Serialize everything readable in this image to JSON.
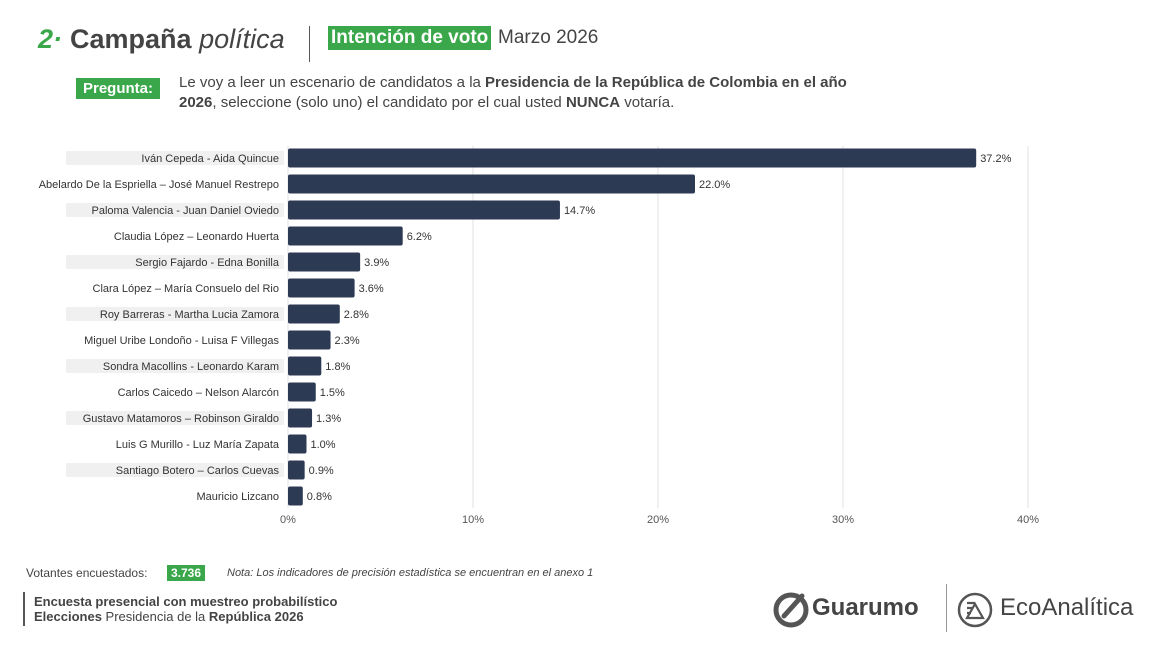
{
  "header": {
    "section_number": "2·",
    "section_title_bold": "Campaña",
    "section_title_italic": "política",
    "tag": "Intención de voto",
    "date": "Marzo  2026"
  },
  "question": {
    "tag": "Pregunta:",
    "part1": "Le voy a leer un escenario de candidatos a la ",
    "part2_bold": "Presidencia de la República de Colombia en el año 2026",
    "part3": ", seleccione (solo uno) el candidato por el cual usted ",
    "part4_bold": "NUNCA",
    "part5": " votaría."
  },
  "chart_data": {
    "type": "bar",
    "orientation": "horizontal",
    "categories": [
      "Iván Cepeda - Aida Quincue",
      "Abelardo De la Espriella – José Manuel Restrepo",
      "Paloma Valencia - Juan Daniel Oviedo",
      "Claudia López – Leonardo Huerta",
      "Sergio Fajardo - Edna Bonilla",
      "Clara López – María Consuelo del Rio",
      "Roy Barreras - Martha Lucia Zamora",
      "Miguel Uribe Londoño - Luisa F Villegas",
      "Sondra Macollins - Leonardo Karam",
      "Carlos Caicedo – Nelson Alarcón",
      "Gustavo Matamoros – Robinson Giraldo",
      "Luis G Murillo - Luz María Zapata",
      "Santiago Botero – Carlos Cuevas",
      "Mauricio Lizcano"
    ],
    "values": [
      37.2,
      22.0,
      14.7,
      6.2,
      3.9,
      3.6,
      2.8,
      2.3,
      1.8,
      1.5,
      1.3,
      1.0,
      0.9,
      0.8
    ],
    "value_labels": [
      "37.2%",
      "22.0%",
      "14.7%",
      "6.2%",
      "3.9%",
      "3.6%",
      "2.8%",
      "2.3%",
      "1.8%",
      "1.5%",
      "1.3%",
      "1.0%",
      "0.9%",
      "0.8%"
    ],
    "xlim": [
      0,
      40
    ],
    "x_ticks": [
      0,
      10,
      20,
      30,
      40
    ],
    "x_tick_labels": [
      "0%",
      "10%",
      "20%",
      "30%",
      "40%"
    ],
    "grid": true,
    "bar_color": "#2c3a54"
  },
  "footer": {
    "voters_label": "Votantes encuestados:",
    "voters_count": "3.736",
    "note": "Nota: Los indicadores de precisión estadística se encuentran en el anexo 1",
    "line1": "Encuesta presencial con muestreo probabilístico",
    "line2_bold1": "Elecciones",
    "line2_mid": " Presidencia de la ",
    "line2_bold2": "República 2026"
  },
  "logos": {
    "guarumo": "Guarumo",
    "ecoanalitica": "EcoAnalítica"
  },
  "colors": {
    "accent_green": "#3aa84a",
    "bar": "#2c3a54",
    "label_band": "#f0f0f0"
  }
}
